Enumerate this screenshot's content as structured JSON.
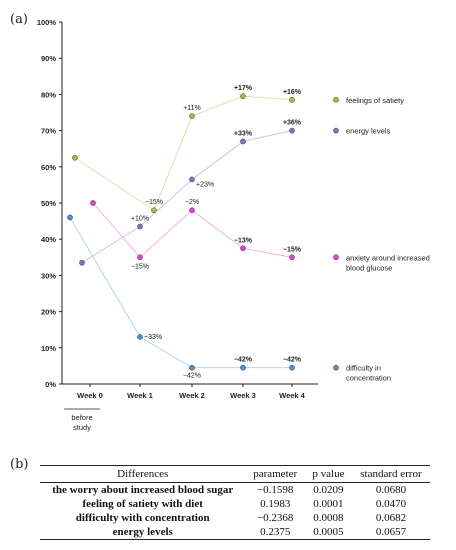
{
  "panel_a_label": "(a)",
  "panel_b_label": "(b)",
  "chart_data": {
    "type": "line",
    "categories": [
      "Week 0",
      "Week 1",
      "Week 2",
      "Week 3",
      "Week 4"
    ],
    "baseline_label_lines": [
      "before",
      "study"
    ],
    "ylim": [
      0,
      100
    ],
    "yticks": [
      "0%",
      "10%",
      "20%",
      "30%",
      "40%",
      "50%",
      "60%",
      "70%",
      "80%",
      "90%",
      "100%"
    ],
    "grid": false,
    "legend_position": "right",
    "series": [
      {
        "name": "feelings of satiety",
        "color": "#8cc63f",
        "baseline": 62.5,
        "values": [
          null,
          48,
          74,
          79.5,
          78.5
        ],
        "labels": [
          "",
          "−15%",
          "+11%",
          "+17%",
          "+16%"
        ],
        "bold": [
          false,
          false,
          false,
          true,
          true
        ]
      },
      {
        "name": "energy levels",
        "color": "#8a6fc0",
        "baseline": 33.5,
        "values": [
          null,
          43.5,
          56.5,
          67,
          70
        ],
        "labels": [
          "",
          "+10%",
          "+23%",
          "+33%",
          "+36%"
        ],
        "bold": [
          false,
          false,
          false,
          true,
          true
        ]
      },
      {
        "name": "anxiety around increased blood glucose",
        "color": "#e040d8",
        "baseline": 50,
        "values": [
          null,
          35,
          48,
          37.5,
          35
        ],
        "labels": [
          "",
          "−15%",
          "−2%",
          "−13%",
          "−15%"
        ],
        "bold": [
          false,
          false,
          false,
          true,
          true
        ]
      },
      {
        "name": "difficulty in concentration",
        "color": "#4a90d9",
        "baseline": 46,
        "values": [
          null,
          13,
          4.5,
          4.5,
          4.5
        ],
        "labels": [
          "",
          "−33%",
          "−42%",
          "−42%",
          "−42%"
        ],
        "bold": [
          false,
          false,
          false,
          true,
          true
        ]
      }
    ]
  },
  "table": {
    "headers": [
      "Differences",
      "parameter",
      "p value",
      "standard error"
    ],
    "rows": [
      [
        "the worry about increased blood sugar",
        "−0.1598",
        "0.0209",
        "0.0680"
      ],
      [
        "feeling of satiety with diet",
        "0.1983",
        "0.0001",
        "0.0470"
      ],
      [
        "difficulty with concentration",
        "−0.2368",
        "0.0008",
        "0.0682"
      ],
      [
        "energy levels",
        "0.2375",
        "0.0005",
        "0.0657"
      ]
    ]
  }
}
